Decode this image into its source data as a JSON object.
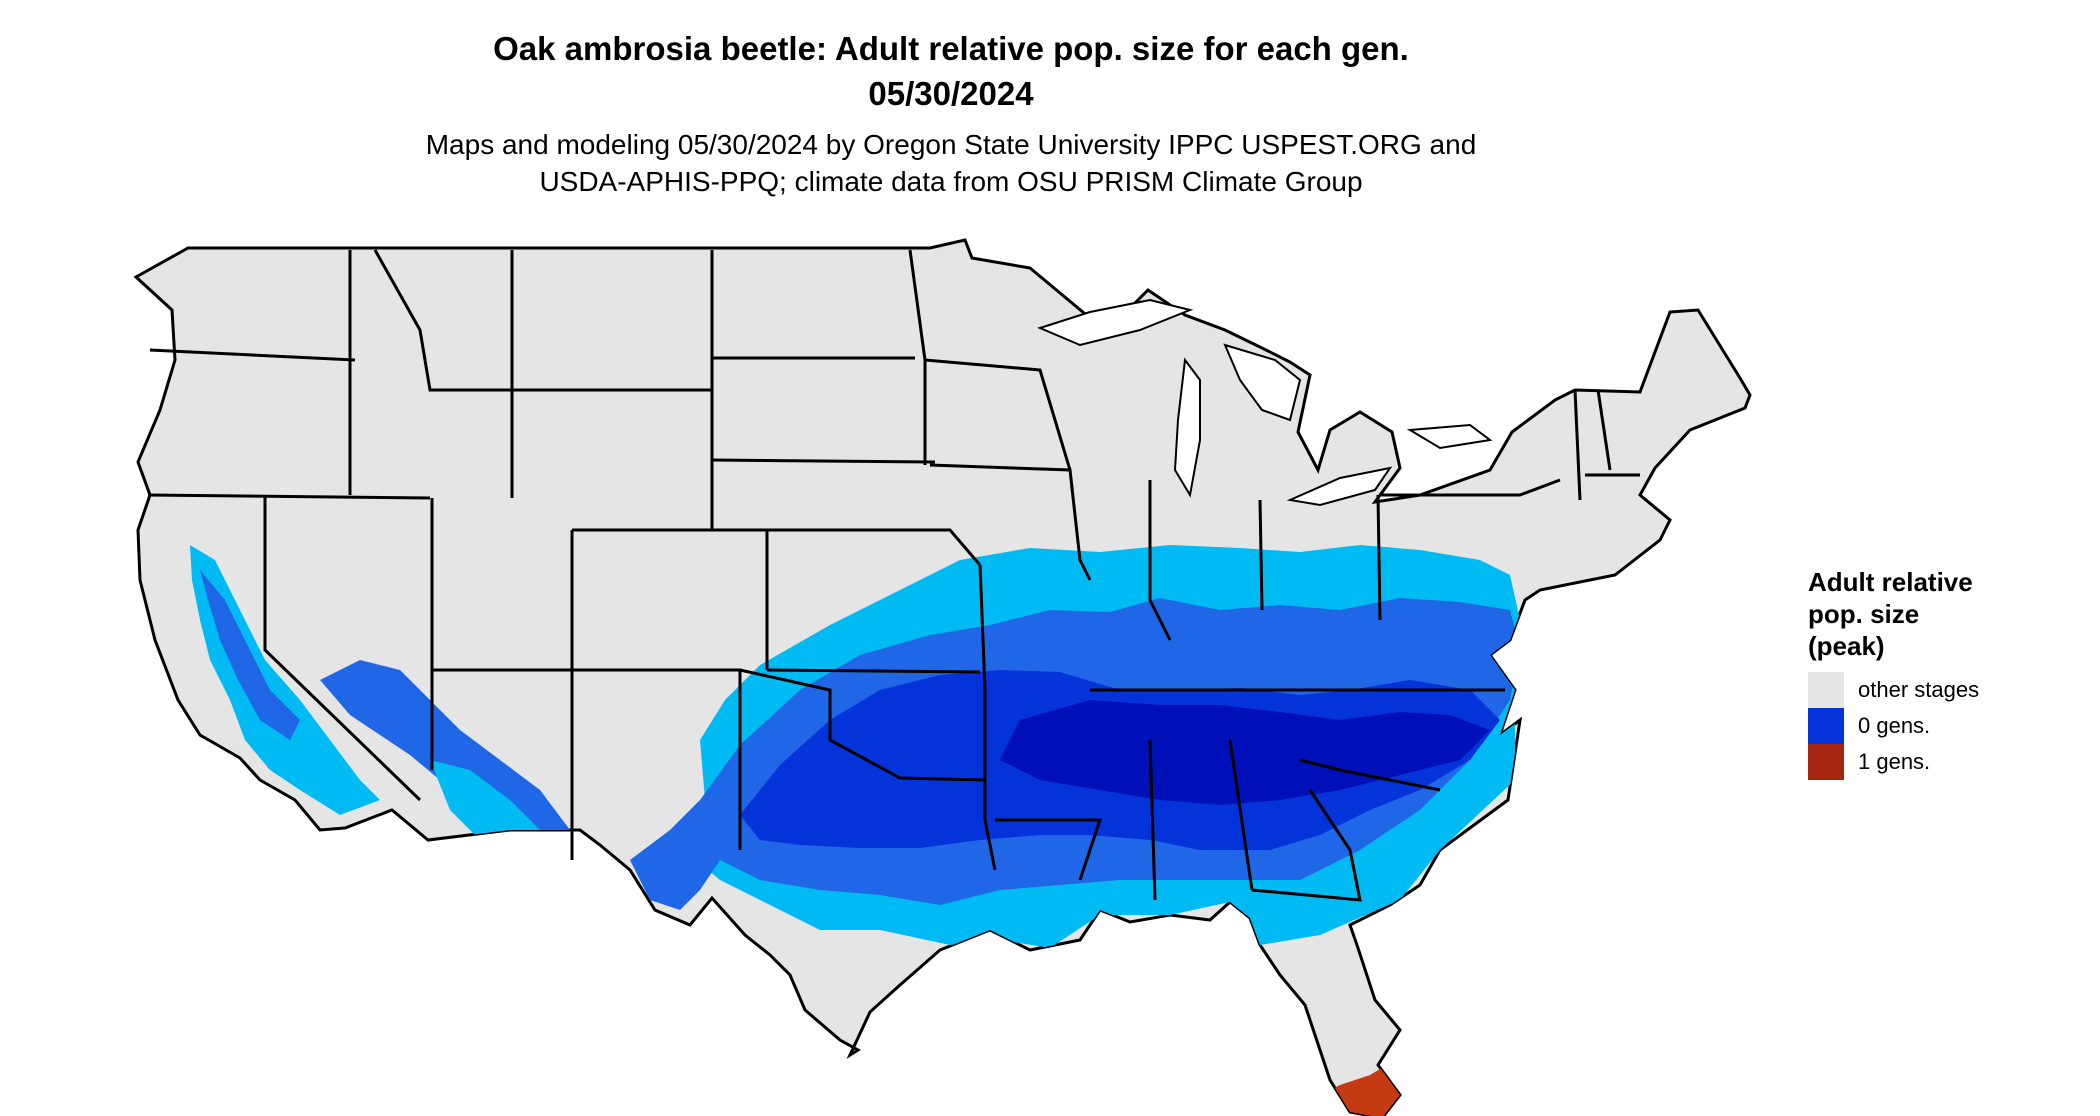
{
  "title": {
    "line1": "Oak ambrosia beetle: Adult relative pop. size for each gen.",
    "line2": "05/30/2024"
  },
  "subtitle": {
    "line1": "Maps and modeling 05/30/2024 by Oregon State University IPPC USPEST.ORG and",
    "line2": "USDA-APHIS-PPQ; climate data from OSU PRISM Climate Group"
  },
  "legend": {
    "title_lines": [
      "Adult relative",
      "pop. size",
      "(peak)"
    ],
    "items": [
      {
        "label": "other stages",
        "color": "#e5e5e5"
      },
      {
        "label": "0 gens.",
        "color": "#0433d9"
      },
      {
        "label": "1 gens.",
        "color": "#a42510"
      }
    ]
  },
  "map_colors": {
    "land": "#e5e5e5",
    "border": "#000000",
    "low_density": "#00bbf3",
    "medium_density": "#1f67e6",
    "high_density": "#0433d9",
    "peak_density": "#0010b8",
    "one_gen": "#c43a12"
  }
}
